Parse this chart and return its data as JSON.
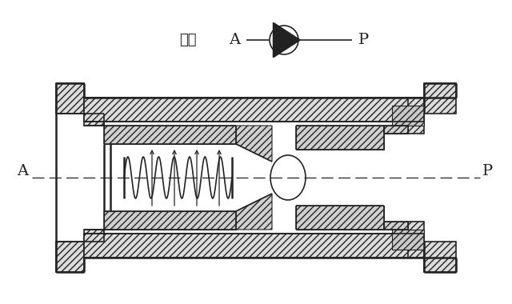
{
  "bg_color": "#ffffff",
  "line_color": "#222222",
  "label_A": "A",
  "label_P": "P",
  "symbol_label": "符号",
  "figsize": [
    6.4,
    3.8
  ],
  "dpi": 100
}
